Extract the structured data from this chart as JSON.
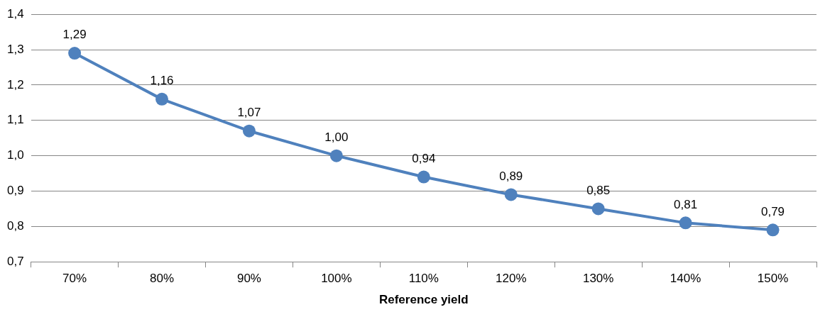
{
  "chart_data": {
    "type": "line",
    "xlabel": "Reference yield",
    "categories": [
      "70%",
      "80%",
      "90%",
      "100%",
      "110%",
      "120%",
      "130%",
      "140%",
      "150%"
    ],
    "series": [
      {
        "color": "#4f81bd",
        "values": [
          1.29,
          1.16,
          1.07,
          1.0,
          0.94,
          0.89,
          0.85,
          0.81,
          0.79
        ]
      }
    ],
    "value_labels": [
      "1,29",
      "1,16",
      "1,07",
      "1,00",
      "0,94",
      "0,89",
      "0,85",
      "0,81",
      "0,79"
    ],
    "ylim": [
      0.7,
      1.4
    ],
    "yticks": [
      {
        "value": 0.7,
        "label": "0,7"
      },
      {
        "value": 0.8,
        "label": "0,8"
      },
      {
        "value": 0.9,
        "label": "0,9"
      },
      {
        "value": 1.0,
        "label": "1,0"
      },
      {
        "value": 1.1,
        "label": "1,1"
      },
      {
        "value": 1.2,
        "label": "1,2"
      },
      {
        "value": 1.3,
        "label": "1,3"
      },
      {
        "value": 1.4,
        "label": "1,4"
      }
    ],
    "grid": "y",
    "legend": false,
    "marker": "circle",
    "line_style": "solid"
  }
}
